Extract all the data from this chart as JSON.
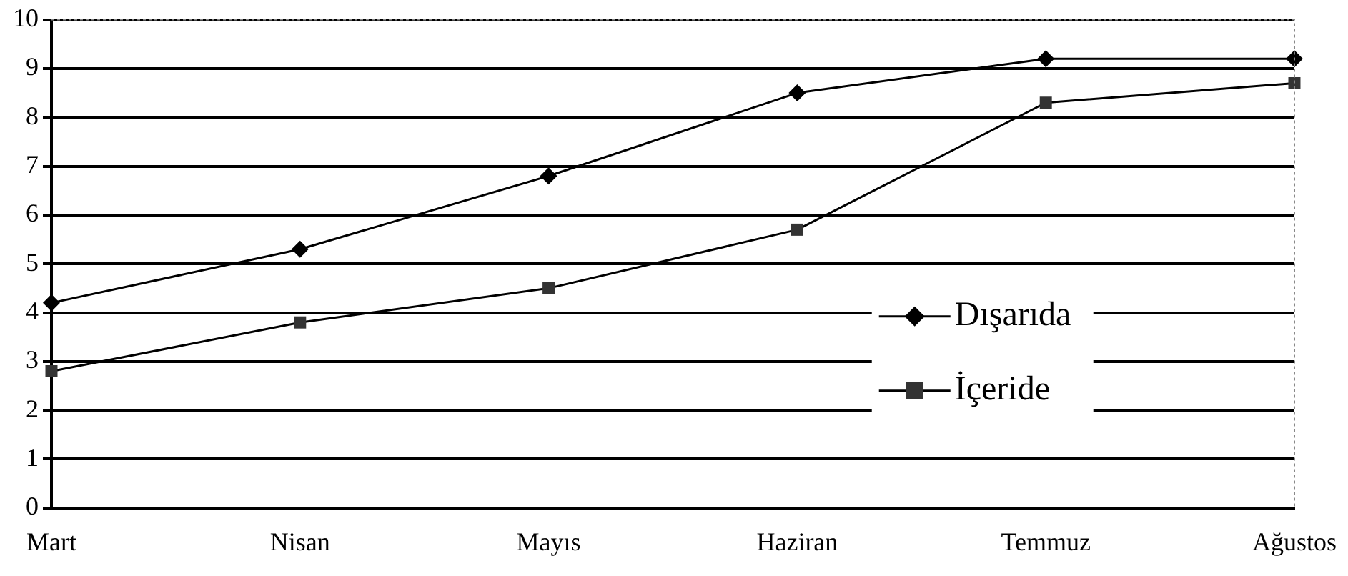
{
  "chart_data": {
    "type": "line",
    "categories": [
      "Mart",
      "Nisan",
      "Mayıs",
      "Haziran",
      "Temmuz",
      "Ağustos"
    ],
    "series": [
      {
        "name": "Dışarıda",
        "color": "#000000",
        "marker": "diamond",
        "values": [
          4.2,
          5.3,
          6.8,
          8.5,
          9.2,
          9.2
        ]
      },
      {
        "name": "İçeride",
        "color": "#333333",
        "marker": "square",
        "values": [
          2.8,
          3.8,
          4.5,
          5.7,
          8.3,
          8.7
        ]
      }
    ],
    "ylim": [
      0,
      10
    ],
    "yticks": [
      0,
      1,
      2,
      3,
      4,
      5,
      6,
      7,
      8,
      9,
      10
    ],
    "grid": "y",
    "legend": "right",
    "line_style": "solid"
  }
}
